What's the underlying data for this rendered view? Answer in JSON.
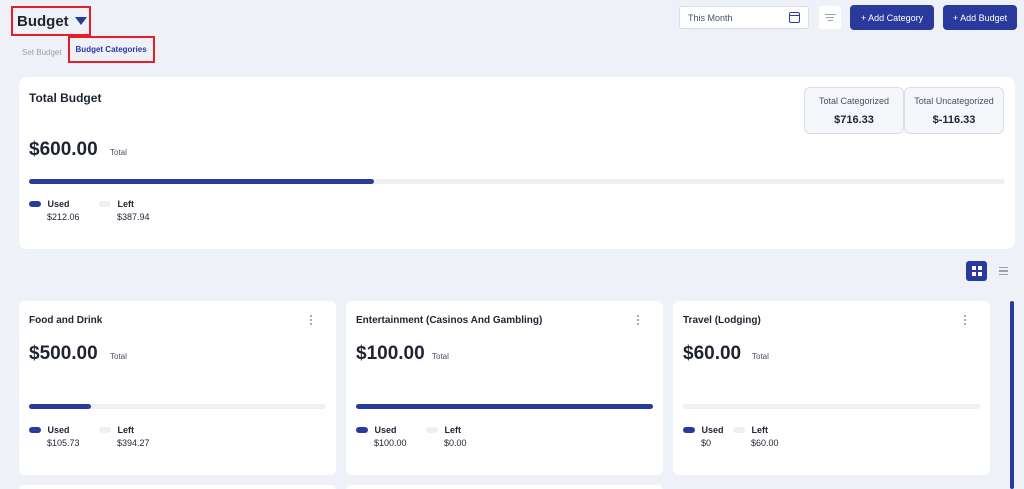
{
  "header": {
    "title": "Budget",
    "tabs": [
      "Set Budget",
      "Budget Categories"
    ],
    "date_filter": "This Month",
    "add_category_label": "+ Add Category",
    "add_budget_label": "+ Add Budget"
  },
  "total_budget": {
    "title": "Total Budget",
    "amount": "$600.00",
    "total_label": "Total",
    "used_fraction": 0.353,
    "used_label": "Used",
    "used_value": "$212.06",
    "left_label": "Left",
    "left_value": "$387.94",
    "categorized_label": "Total Categorized",
    "categorized_value": "$716.33",
    "uncategorized_label": "Total Uncategorized",
    "uncategorized_value": "$-116.33"
  },
  "categories": [
    {
      "name": "Food and Drink",
      "amount": "$500.00",
      "total_label": "Total",
      "used_fraction": 0.21,
      "used_label": "Used",
      "used_value": "$105.73",
      "left_label": "Left",
      "left_value": "$394.27"
    },
    {
      "name": "Entertainment (Casinos And Gambling)",
      "amount": "$100.00",
      "total_label": "Total",
      "used_fraction": 1.0,
      "used_label": "Used",
      "used_value": "$100.00",
      "left_label": "Left",
      "left_value": "$0.00"
    },
    {
      "name": "Travel (Lodging)",
      "amount": "$60.00",
      "total_label": "Total",
      "used_fraction": 0.0,
      "used_label": "Used",
      "used_value": "$0",
      "left_label": "Left",
      "left_value": "$60.00"
    }
  ],
  "colors": {
    "accent": "#2a3a9c",
    "highlight": "#e3202a",
    "background": "#eef1f8"
  },
  "icons": [
    "caret-down-icon",
    "calendar-icon",
    "filter-icon",
    "grid-view-icon",
    "list-view-icon",
    "more-vertical-icon"
  ]
}
